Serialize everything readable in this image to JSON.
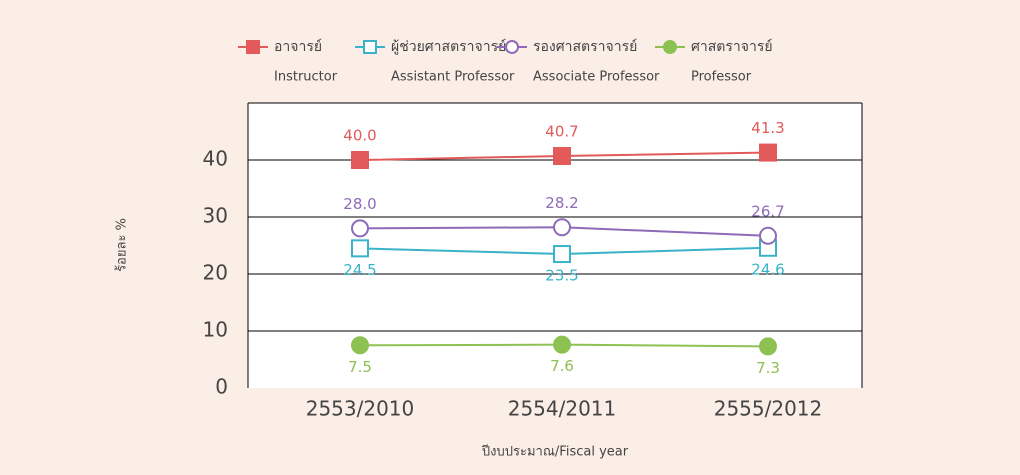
{
  "chart_data": {
    "type": "line",
    "x_label": "ปีงบประมาณ/Fiscal year",
    "y_label": "ร้อยละ %",
    "categories": [
      "2553/2010",
      "2554/2011",
      "2555/2012"
    ],
    "ylim": [
      0,
      50
    ],
    "yticks": [
      0,
      10,
      20,
      30,
      40
    ],
    "grid": true,
    "series": [
      {
        "name": "อาจารย์",
        "name_en": "Instructor",
        "color": "#e35a5a",
        "marker": "square",
        "filled": true,
        "values": [
          40.0,
          40.7,
          41.3
        ],
        "value_labels": [
          "40.0",
          "40.7",
          "41.3"
        ]
      },
      {
        "name": "ผู้ช่วยศาสตราจารย์",
        "name_en": "Assistant Professor",
        "color": "#3ab3ca",
        "marker": "square",
        "filled": false,
        "values": [
          24.5,
          23.5,
          24.6
        ],
        "value_labels": [
          "24.5",
          "23.5",
          "24.6"
        ]
      },
      {
        "name": "รองศาสตราจารย์",
        "name_en": "Associate Professor",
        "color": "#8e6bb8",
        "marker": "circle",
        "filled": false,
        "values": [
          28.0,
          28.2,
          26.7
        ],
        "value_labels": [
          "28.0",
          "28.2",
          "26.7"
        ]
      },
      {
        "name": "ศาสตราจารย์",
        "name_en": "Professor",
        "color": "#8dc152",
        "marker": "circle",
        "filled": true,
        "values": [
          7.5,
          7.6,
          7.3
        ],
        "value_labels": [
          "7.5",
          "7.6",
          "7.3"
        ]
      }
    ]
  }
}
